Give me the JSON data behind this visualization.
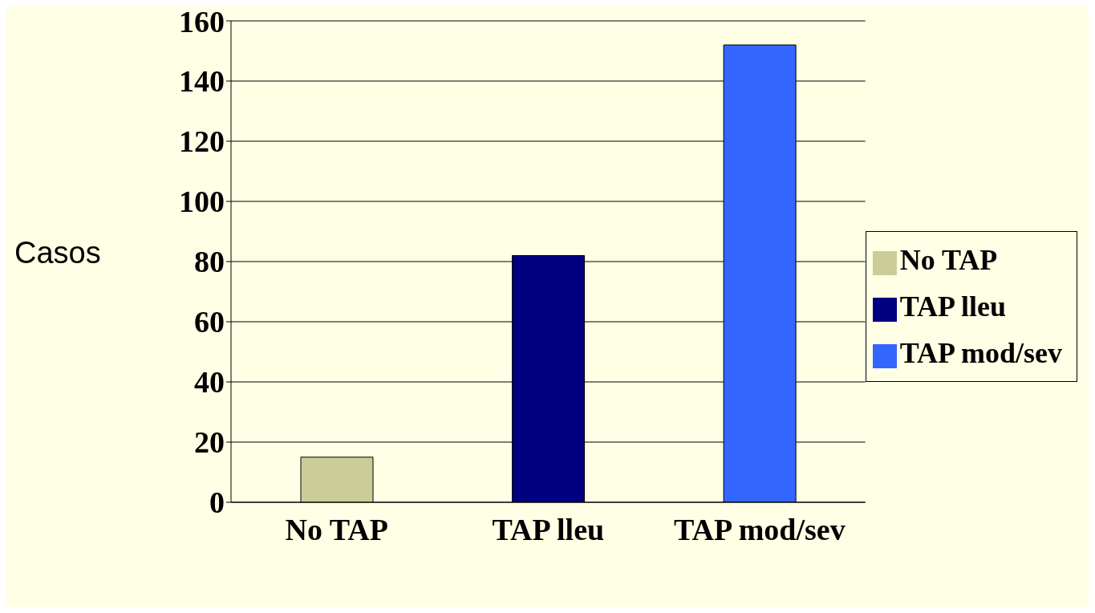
{
  "chart_data": {
    "type": "bar",
    "ylabel": "Casos",
    "categories": [
      "No TAP",
      "TAP lleu",
      "TAP mod/sev"
    ],
    "series": [
      {
        "name": "No TAP",
        "color": "#cccc99",
        "values": [
          15,
          null,
          null
        ]
      },
      {
        "name": "TAP lleu",
        "color": "#000080",
        "values": [
          null,
          82,
          null
        ]
      },
      {
        "name": "TAP mod/sev",
        "color": "#3366ff",
        "values": [
          null,
          null,
          152
        ]
      }
    ],
    "stacked": true,
    "ylim": [
      0,
      160
    ],
    "yticks": [
      0,
      20,
      40,
      60,
      80,
      100,
      120,
      140,
      160
    ],
    "grid": "y",
    "legend": "right"
  }
}
